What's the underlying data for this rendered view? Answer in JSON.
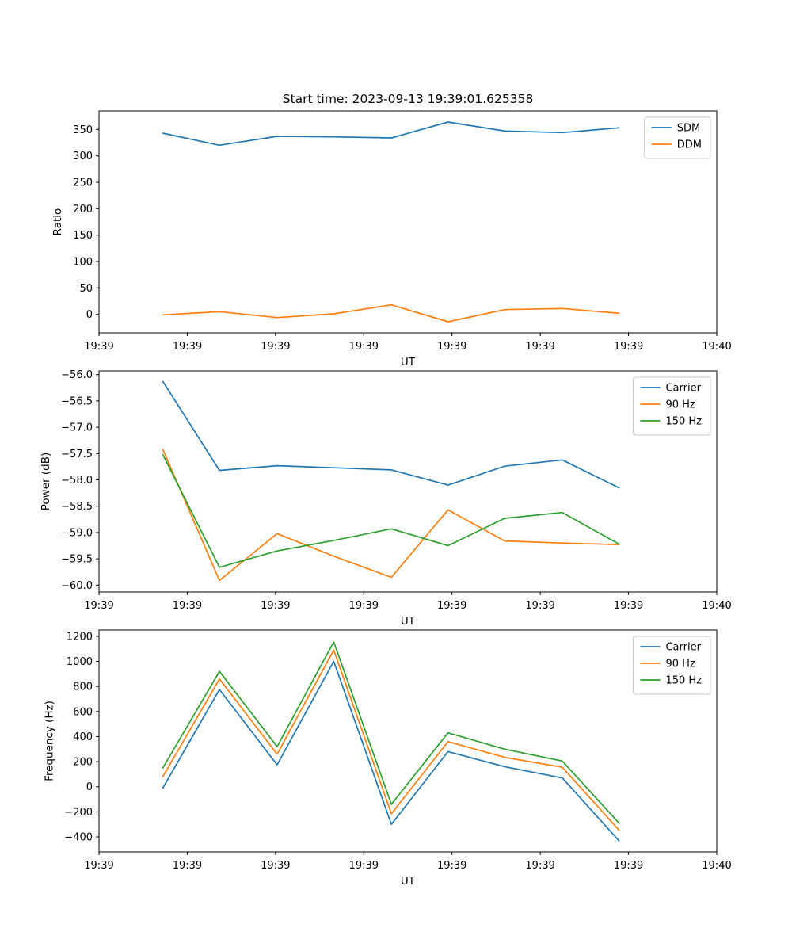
{
  "figure": {
    "background": "#ffffff"
  },
  "chart_data": [
    {
      "type": "line",
      "title": "Start time: 2023-09-13 19:39:01.625358",
      "xlabel": "UT",
      "ylabel": "Ratio",
      "legend_position": "upper right",
      "grid": false,
      "xlim": [
        0,
        60
      ],
      "ylim": [
        -35,
        385
      ],
      "x": [
        6.2,
        11.7,
        17.3,
        22.8,
        28.4,
        33.9,
        39.4,
        45.0,
        50.5
      ],
      "xticks": [
        0,
        8.5714,
        17.1429,
        25.7143,
        34.2857,
        42.8571,
        51.4286,
        60
      ],
      "xticklabels": [
        "19:39",
        "19:39",
        "19:39",
        "19:39",
        "19:39",
        "19:39",
        "19:39",
        "19:40"
      ],
      "yticks": [
        0,
        50,
        100,
        150,
        200,
        250,
        300,
        350
      ],
      "yticklabels": [
        "0",
        "50",
        "100",
        "150",
        "200",
        "250",
        "300",
        "350"
      ],
      "series": [
        {
          "name": "SDM",
          "color": "#1f77b4",
          "values": [
            343,
            320,
            337,
            336,
            334,
            364,
            347,
            344,
            353
          ]
        },
        {
          "name": "DDM",
          "color": "#ff7f0e",
          "values": [
            -1,
            5,
            -6,
            1,
            18,
            -14,
            9,
            11,
            2
          ]
        }
      ]
    },
    {
      "type": "line",
      "title": "",
      "xlabel": "UT",
      "ylabel": "Power (dB)",
      "legend_position": "upper right",
      "grid": false,
      "xlim": [
        0,
        60
      ],
      "ylim": [
        -60.13,
        -55.93
      ],
      "x": [
        6.2,
        11.7,
        17.3,
        22.8,
        28.4,
        33.9,
        39.4,
        45.0,
        50.5
      ],
      "xticks": [
        0,
        8.5714,
        17.1429,
        25.7143,
        34.2857,
        42.8571,
        51.4286,
        60
      ],
      "xticklabels": [
        "19:39",
        "19:39",
        "19:39",
        "19:39",
        "19:39",
        "19:39",
        "19:39",
        "19:40"
      ],
      "yticks": [
        -56.0,
        -56.5,
        -57.0,
        -57.5,
        -58.0,
        -58.5,
        -59.0,
        -59.5,
        -60.0
      ],
      "yticklabels": [
        "−56.0",
        "−56.5",
        "−57.0",
        "−57.5",
        "−58.0",
        "−58.5",
        "−59.0",
        "−59.5",
        "−60.0"
      ],
      "series": [
        {
          "name": "Carrier",
          "color": "#1f77b4",
          "values": [
            -56.13,
            -57.82,
            -57.73,
            -57.77,
            -57.81,
            -58.1,
            -57.74,
            -57.62,
            -58.15
          ]
        },
        {
          "name": "90 Hz",
          "color": "#ff7f0e",
          "values": [
            -57.42,
            -59.91,
            -59.02,
            -59.45,
            -59.85,
            -58.57,
            -59.16,
            -59.2,
            -59.23
          ]
        },
        {
          "name": "150 Hz",
          "color": "#2ca02c",
          "values": [
            -57.52,
            -59.66,
            -59.35,
            -59.15,
            -58.93,
            -59.25,
            -58.73,
            -58.62,
            -59.22
          ]
        }
      ]
    },
    {
      "type": "line",
      "title": "",
      "xlabel": "UT",
      "ylabel": "Frequency (Hz)",
      "legend_position": "upper right",
      "grid": false,
      "xlim": [
        0,
        60
      ],
      "ylim": [
        -520,
        1250
      ],
      "x": [
        6.2,
        11.7,
        17.3,
        22.8,
        28.4,
        33.9,
        39.4,
        45.0,
        50.5
      ],
      "xticks": [
        0,
        8.5714,
        17.1429,
        25.7143,
        34.2857,
        42.8571,
        51.4286,
        60
      ],
      "xticklabels": [
        "19:39",
        "19:39",
        "19:39",
        "19:39",
        "19:39",
        "19:39",
        "19:39",
        "19:40"
      ],
      "yticks": [
        -400,
        -200,
        0,
        200,
        400,
        600,
        800,
        1000,
        1200
      ],
      "yticklabels": [
        "−400",
        "−200",
        "0",
        "200",
        "400",
        "600",
        "800",
        "1000",
        "1200"
      ],
      "series": [
        {
          "name": "Carrier",
          "color": "#1f77b4",
          "values": [
            -10,
            775,
            175,
            1000,
            -300,
            280,
            160,
            70,
            -430
          ]
        },
        {
          "name": "90 Hz",
          "color": "#ff7f0e",
          "values": [
            80,
            860,
            260,
            1090,
            -215,
            360,
            235,
            155,
            -345
          ]
        },
        {
          "name": "150 Hz",
          "color": "#2ca02c",
          "values": [
            150,
            920,
            320,
            1155,
            -140,
            430,
            300,
            205,
            -290
          ]
        }
      ]
    }
  ]
}
